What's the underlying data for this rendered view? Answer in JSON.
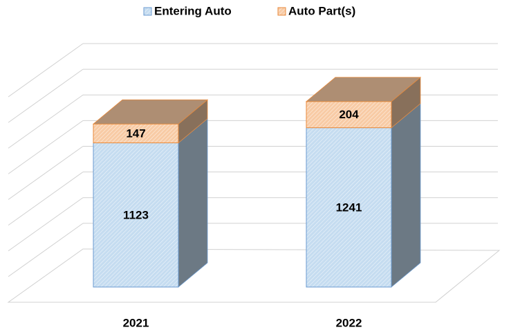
{
  "chart_data": {
    "type": "bar3d_stacked",
    "categories": [
      "2021",
      "2022"
    ],
    "series": [
      {
        "name": "Entering Auto",
        "color": "#c5dcf0",
        "values": [
          1123,
          1241
        ]
      },
      {
        "name": "Auto Part(s)",
        "color": "#f8cba5",
        "values": [
          147,
          204
        ]
      }
    ],
    "ylim": [
      0,
      1600
    ],
    "yticks": [
      0,
      200,
      400,
      600,
      800,
      1000,
      1200,
      1400,
      1600
    ],
    "grid": true,
    "legend": "top"
  }
}
